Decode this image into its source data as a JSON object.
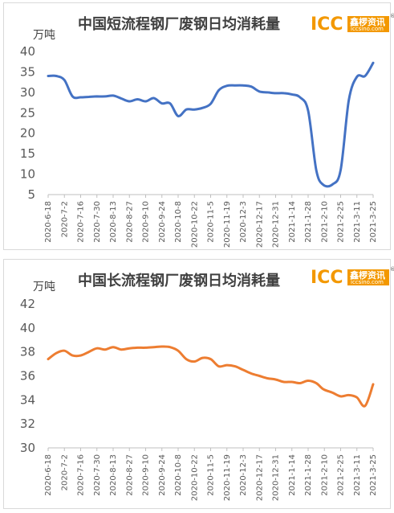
{
  "logo": {
    "mark": "ICC",
    "cn": "鑫椤资讯",
    "url": "iccsino.com",
    "reg": "®"
  },
  "chart_data": [
    {
      "type": "line",
      "title": "中国短流程钢厂废钢日均消耗量",
      "unit": "万吨",
      "ylim": [
        5,
        40
      ],
      "yticks": [
        5,
        10,
        15,
        20,
        25,
        30,
        35,
        40
      ],
      "xlim": [
        "2020-06-18",
        "2021-03-25"
      ],
      "categories": [
        "2020-6-18",
        "2020-7-2",
        "2020-7-16",
        "2020-7-30",
        "2020-8-13",
        "2020-8-27",
        "2020-9-10",
        "2020-9-24",
        "2020-10-8",
        "2020-10-22",
        "2020-11-5",
        "2020-11-19",
        "2020-12-3",
        "2020-12-17",
        "2020-12-31",
        "2021-1-14",
        "2021-1-28",
        "2021-2-10",
        "2021-2-25",
        "2021-3-11",
        "2021-3-25"
      ],
      "grid": false,
      "color": "#4472c4",
      "series": [
        {
          "x": [
            "2020-06-18",
            "2020-06-25",
            "2020-07-02",
            "2020-07-09",
            "2020-07-16",
            "2020-07-23",
            "2020-07-30",
            "2020-08-06",
            "2020-08-13",
            "2020-08-20",
            "2020-08-27",
            "2020-09-03",
            "2020-09-10",
            "2020-09-17",
            "2020-09-24",
            "2020-10-01",
            "2020-10-08",
            "2020-10-15",
            "2020-10-22",
            "2020-10-29",
            "2020-11-05",
            "2020-11-12",
            "2020-11-19",
            "2020-11-26",
            "2020-12-03",
            "2020-12-10",
            "2020-12-17",
            "2020-12-24",
            "2020-12-31",
            "2021-01-07",
            "2021-01-14",
            "2021-01-21",
            "2021-01-28",
            "2021-02-04",
            "2021-02-10",
            "2021-02-18",
            "2021-02-25",
            "2021-03-04",
            "2021-03-11",
            "2021-03-18",
            "2021-03-25"
          ],
          "values": [
            34,
            34,
            33,
            29,
            28.8,
            28.9,
            29,
            29,
            29.2,
            28.5,
            27.8,
            28.3,
            27.8,
            28.6,
            27.3,
            27.3,
            24.2,
            25.8,
            25.8,
            26.2,
            27.2,
            30.5,
            31.6,
            31.7,
            31.7,
            31.4,
            30.2,
            30,
            29.8,
            29.8,
            29.5,
            28.8,
            25.5,
            11,
            7.4,
            7.5,
            11,
            28,
            33.8,
            34,
            37.2
          ]
        }
      ]
    },
    {
      "type": "line",
      "title": "中国长流程钢厂废钢日均消耗量",
      "unit": "万吨",
      "ylim": [
        30,
        42
      ],
      "yticks": [
        30,
        32,
        34,
        36,
        38,
        40,
        42
      ],
      "xlim": [
        "2020-06-18",
        "2021-03-25"
      ],
      "categories": [
        "2020-6-18",
        "2020-7-2",
        "2020-7-16",
        "2020-7-30",
        "2020-8-13",
        "2020-8-27",
        "2020-9-10",
        "2020-9-24",
        "2020-10-8",
        "2020-10-22",
        "2020-11-5",
        "2020-11-19",
        "2020-12-3",
        "2020-12-17",
        "2020-12-31",
        "2021-1-14",
        "2021-1-28",
        "2021-2-10",
        "2021-2-25",
        "2021-3-11",
        "2021-3-25"
      ],
      "grid": false,
      "color": "#ed7d31",
      "series": [
        {
          "x": [
            "2020-06-18",
            "2020-06-25",
            "2020-07-02",
            "2020-07-09",
            "2020-07-16",
            "2020-07-23",
            "2020-07-30",
            "2020-08-06",
            "2020-08-13",
            "2020-08-20",
            "2020-08-27",
            "2020-09-03",
            "2020-09-10",
            "2020-09-17",
            "2020-09-24",
            "2020-10-01",
            "2020-10-08",
            "2020-10-15",
            "2020-10-22",
            "2020-10-29",
            "2020-11-05",
            "2020-11-12",
            "2020-11-19",
            "2020-11-26",
            "2020-12-03",
            "2020-12-10",
            "2020-12-17",
            "2020-12-24",
            "2020-12-31",
            "2021-01-07",
            "2021-01-14",
            "2021-01-21",
            "2021-01-28",
            "2021-02-04",
            "2021-02-10",
            "2021-02-18",
            "2021-02-25",
            "2021-03-04",
            "2021-03-11",
            "2021-03-18",
            "2021-03-25"
          ],
          "values": [
            37.4,
            37.9,
            38.1,
            37.7,
            37.7,
            38.0,
            38.3,
            38.2,
            38.4,
            38.2,
            38.3,
            38.35,
            38.35,
            38.4,
            38.45,
            38.4,
            38.1,
            37.4,
            37.2,
            37.5,
            37.4,
            36.8,
            36.9,
            36.8,
            36.5,
            36.2,
            36.0,
            35.8,
            35.7,
            35.5,
            35.5,
            35.4,
            35.6,
            35.4,
            34.9,
            34.6,
            34.3,
            34.4,
            34.2,
            33.5,
            35.3
          ]
        }
      ]
    }
  ]
}
